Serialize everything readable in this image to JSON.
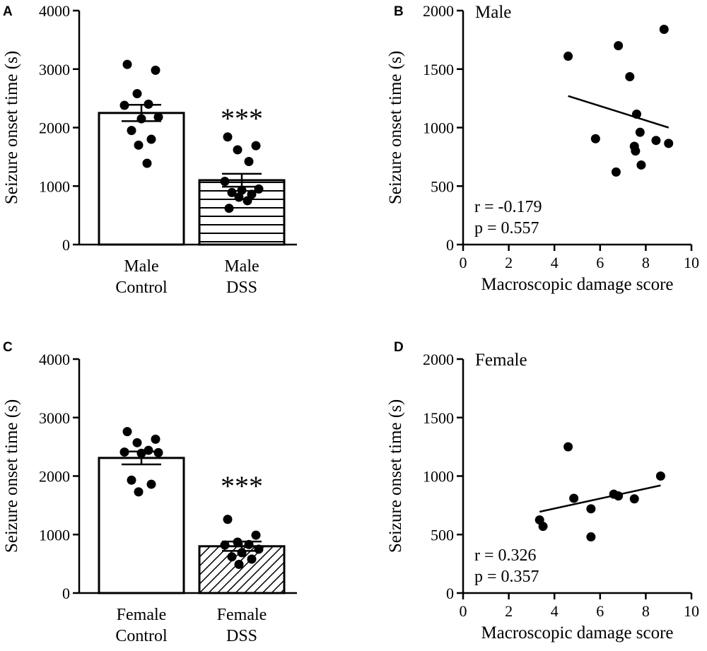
{
  "chart_data": [
    {
      "panel": "A",
      "type": "bar",
      "ylabel": "Seizure onset time (s)",
      "ylim": [
        0,
        4000
      ],
      "yticks": [
        0,
        1000,
        2000,
        3000,
        4000
      ],
      "categories": [
        {
          "line1": "Male",
          "line2": "Control"
        },
        {
          "line1": "Male",
          "line2": "DSS"
        }
      ],
      "values": [
        2250,
        1100
      ],
      "sem": [
        140,
        110
      ],
      "fills": [
        "plain",
        "horizontal-lines"
      ],
      "significance": [
        "",
        "***"
      ],
      "points": [
        [
          3080,
          2980,
          2580,
          2400,
          2380,
          2180,
          2150,
          1950,
          1800,
          1700,
          1390
        ],
        [
          1840,
          1690,
          1620,
          1420,
          1080,
          950,
          930,
          890,
          860,
          810,
          750,
          620
        ]
      ]
    },
    {
      "panel": "B",
      "type": "scatter",
      "title": "Male",
      "xlabel": "Macroscopic damage score",
      "ylabel": "Seizure onset time (s)",
      "xlim": [
        0,
        10
      ],
      "ylim": [
        0,
        2000
      ],
      "xticks": [
        0,
        2,
        4,
        6,
        8,
        10
      ],
      "yticks": [
        0,
        500,
        1000,
        1500,
        2000
      ],
      "points": [
        {
          "x": 4.6,
          "y": 1610
        },
        {
          "x": 5.8,
          "y": 905
        },
        {
          "x": 6.7,
          "y": 620
        },
        {
          "x": 6.8,
          "y": 1700
        },
        {
          "x": 7.3,
          "y": 1435
        },
        {
          "x": 7.5,
          "y": 840
        },
        {
          "x": 7.55,
          "y": 800
        },
        {
          "x": 7.6,
          "y": 1115
        },
        {
          "x": 7.75,
          "y": 960
        },
        {
          "x": 7.8,
          "y": 680
        },
        {
          "x": 8.45,
          "y": 890
        },
        {
          "x": 8.8,
          "y": 1840
        },
        {
          "x": 9.0,
          "y": 865
        }
      ],
      "fit": {
        "x": [
          4.6,
          9.0
        ],
        "y": [
          1270,
          1000
        ]
      },
      "stats": {
        "r": "r = -0.179",
        "p": "p = 0.557"
      }
    },
    {
      "panel": "C",
      "type": "bar",
      "ylabel": "Seizure onset time (s)",
      "ylim": [
        0,
        4000
      ],
      "yticks": [
        0,
        1000,
        2000,
        3000,
        4000
      ],
      "categories": [
        {
          "line1": "Female",
          "line2": "Control"
        },
        {
          "line1": "Female",
          "line2": "DSS"
        }
      ],
      "values": [
        2310,
        800
      ],
      "sem": [
        110,
        80
      ],
      "fills": [
        "plain",
        "diagonal-hatch"
      ],
      "significance": [
        "",
        "***"
      ],
      "points": [
        [
          2760,
          2630,
          2570,
          2440,
          2410,
          2400,
          2390,
          1930,
          1860,
          1730
        ],
        [
          1260,
          990,
          870,
          830,
          820,
          750,
          690,
          620,
          580,
          490
        ]
      ]
    },
    {
      "panel": "D",
      "type": "scatter",
      "title": "Female",
      "xlabel": "Macroscopic damage score",
      "ylabel": "Seizure onset time (s)",
      "xlim": [
        0,
        10
      ],
      "ylim": [
        0,
        2000
      ],
      "xticks": [
        0,
        2,
        4,
        6,
        8,
        10
      ],
      "yticks": [
        0,
        500,
        1000,
        1500,
        2000
      ],
      "points": [
        {
          "x": 3.35,
          "y": 625
        },
        {
          "x": 3.5,
          "y": 570
        },
        {
          "x": 4.6,
          "y": 1250
        },
        {
          "x": 4.85,
          "y": 810
        },
        {
          "x": 5.6,
          "y": 720
        },
        {
          "x": 5.6,
          "y": 480
        },
        {
          "x": 6.6,
          "y": 845
        },
        {
          "x": 6.8,
          "y": 830
        },
        {
          "x": 7.5,
          "y": 805
        },
        {
          "x": 8.65,
          "y": 1000
        }
      ],
      "fit": {
        "x": [
          3.35,
          8.65
        ],
        "y": [
          695,
          920
        ]
      },
      "stats": {
        "r": "r = 0.326",
        "p": "p = 0.357"
      }
    }
  ]
}
